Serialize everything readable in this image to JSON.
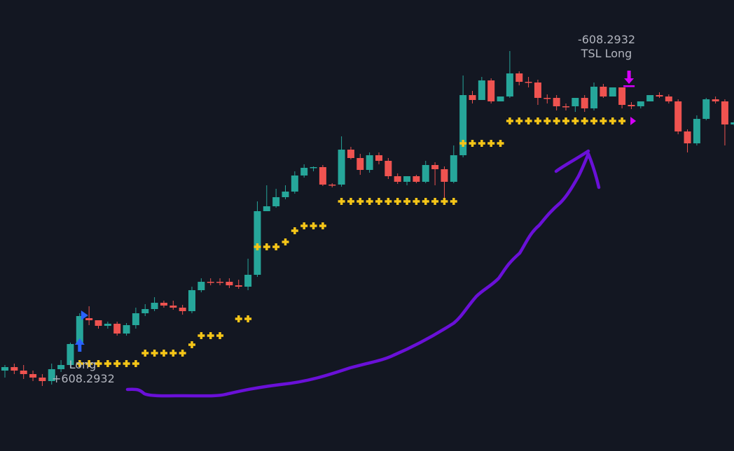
{
  "chart_data": {
    "type": "candlestick",
    "colors": {
      "background": "#131722",
      "up": "#26a69a",
      "down": "#ef5350",
      "stop_marker": "#f5c518",
      "long_marker": "#2962ff",
      "exit_marker": "#d500f9",
      "annotation": "#6a10d8",
      "label_text": "#b2b5be"
    },
    "candles": [
      [
        530,
        525,
        540,
        522
      ],
      [
        525,
        530,
        535,
        520
      ],
      [
        530,
        535,
        542,
        522
      ],
      [
        535,
        540,
        545,
        530
      ],
      [
        540,
        545,
        552,
        535
      ],
      [
        545,
        528,
        550,
        520
      ],
      [
        528,
        522,
        532,
        515
      ],
      [
        522,
        492,
        526,
        490
      ],
      [
        492,
        452,
        495,
        448
      ],
      [
        455,
        458,
        438,
        465
      ],
      [
        458,
        466,
        462,
        470
      ],
      [
        466,
        463,
        460,
        470
      ],
      [
        463,
        477,
        460,
        480
      ],
      [
        477,
        465,
        480,
        462
      ],
      [
        465,
        448,
        470,
        440
      ],
      [
        448,
        442,
        452,
        435
      ],
      [
        442,
        433,
        445,
        425
      ],
      [
        433,
        437,
        430,
        440
      ],
      [
        437,
        440,
        430,
        443
      ],
      [
        440,
        445,
        436,
        450
      ],
      [
        445,
        415,
        448,
        410
      ],
      [
        415,
        403,
        418,
        398
      ],
      [
        403,
        403,
        398,
        408
      ],
      [
        403,
        403,
        398,
        408
      ],
      [
        403,
        408,
        398,
        412
      ],
      [
        408,
        410,
        400,
        413
      ],
      [
        410,
        393,
        415,
        370
      ],
      [
        393,
        302,
        396,
        288
      ],
      [
        302,
        295,
        300,
        265
      ],
      [
        295,
        282,
        297,
        270
      ],
      [
        282,
        274,
        285,
        265
      ],
      [
        274,
        251,
        277,
        245
      ],
      [
        251,
        240,
        254,
        235
      ],
      [
        240,
        239,
        238,
        245
      ],
      [
        239,
        264,
        236,
        266
      ],
      [
        264,
        264,
        262,
        268
      ],
      [
        264,
        214,
        267,
        195
      ],
      [
        214,
        226,
        210,
        228
      ],
      [
        226,
        243,
        220,
        250
      ],
      [
        243,
        222,
        247,
        218
      ],
      [
        222,
        230,
        218,
        235
      ],
      [
        230,
        252,
        226,
        256
      ],
      [
        252,
        260,
        248,
        263
      ],
      [
        260,
        252,
        258,
        265
      ],
      [
        252,
        260,
        250,
        262
      ],
      [
        260,
        236,
        262,
        230
      ],
      [
        236,
        242,
        232,
        265
      ],
      [
        242,
        260,
        238,
        285
      ],
      [
        260,
        222,
        262,
        208
      ],
      [
        222,
        136,
        225,
        108
      ],
      [
        136,
        143,
        130,
        148
      ],
      [
        143,
        115,
        140,
        110
      ],
      [
        115,
        145,
        112,
        148
      ],
      [
        145,
        138,
        142,
        145
      ],
      [
        138,
        105,
        140,
        73
      ],
      [
        105,
        117,
        102,
        122
      ],
      [
        117,
        118,
        110,
        125
      ],
      [
        118,
        140,
        114,
        150
      ],
      [
        140,
        140,
        135,
        148
      ],
      [
        140,
        152,
        136,
        158
      ],
      [
        152,
        152,
        148,
        158
      ],
      [
        152,
        140,
        148,
        160
      ],
      [
        140,
        155,
        136,
        160
      ],
      [
        155,
        124,
        158,
        118
      ],
      [
        124,
        138,
        120,
        140
      ],
      [
        138,
        125,
        134,
        130
      ],
      [
        125,
        150,
        128,
        155
      ],
      [
        150,
        152,
        146,
        156
      ],
      [
        152,
        145,
        148,
        155
      ],
      [
        145,
        136,
        142,
        142
      ],
      [
        136,
        138,
        132,
        140
      ],
      [
        138,
        145,
        135,
        148
      ],
      [
        145,
        188,
        142,
        192
      ],
      [
        188,
        205,
        185,
        218
      ],
      [
        205,
        170,
        208,
        165
      ],
      [
        170,
        142,
        172,
        140
      ],
      [
        142,
        145,
        138,
        148
      ],
      [
        145,
        178,
        142,
        208
      ],
      [
        178,
        175,
        172,
        180
      ],
      [
        175,
        145,
        178,
        140
      ],
      [
        145,
        140,
        142,
        145
      ],
      [
        140,
        137,
        138,
        142
      ],
      [
        137,
        135,
        132,
        140
      ],
      [
        135,
        148,
        138,
        152
      ]
    ],
    "stop_runs": [
      {
        "start": 8,
        "end": 14,
        "y": 520
      },
      {
        "start": 15,
        "end": 19,
        "y": 505
      },
      {
        "start": 20,
        "end": 20,
        "y": 493
      },
      {
        "start": 21,
        "end": 23,
        "y": 480
      },
      {
        "start": 25,
        "end": 26,
        "y": 456
      },
      {
        "start": 27,
        "end": 29,
        "y": 353
      },
      {
        "start": 30,
        "end": 30,
        "y": 346
      },
      {
        "start": 31,
        "end": 31,
        "y": 330
      },
      {
        "start": 32,
        "end": 34,
        "y": 323
      },
      {
        "start": 36,
        "end": 48,
        "y": 288
      },
      {
        "start": 49,
        "end": 53,
        "y": 205
      },
      {
        "start": 54,
        "end": 66,
        "y": 173
      }
    ],
    "signals": [
      {
        "type": "entry",
        "side": "long",
        "index": 8,
        "label": "Long",
        "pnl": "+608.2932"
      },
      {
        "type": "exit",
        "side": "long",
        "index": 66,
        "label": "TSL Long",
        "pnl": "-608.2932"
      }
    ]
  }
}
